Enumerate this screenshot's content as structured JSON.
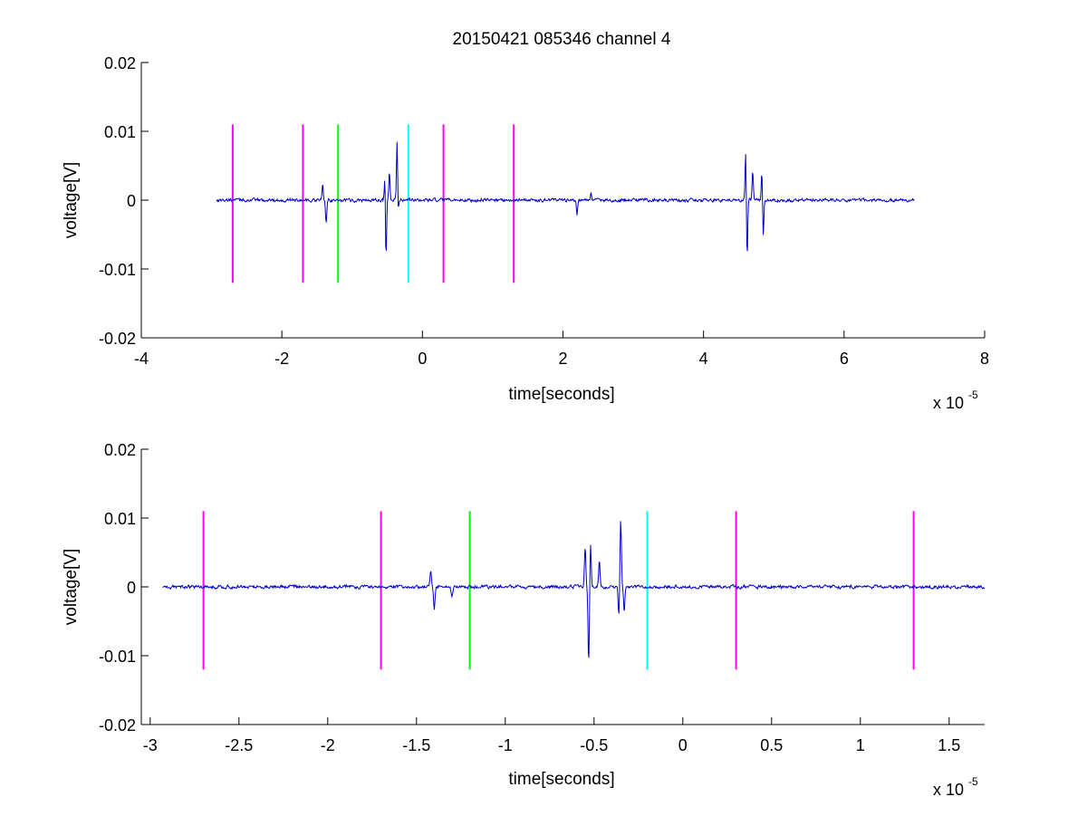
{
  "chart_data": [
    {
      "type": "line",
      "title": "20150421 085346 channel 4",
      "xlabel": "time[seconds]",
      "ylabel": "voltage[V]",
      "xlim": [
        -4,
        8
      ],
      "ylim": [
        -0.02,
        0.02
      ],
      "x_tick_labels": [
        "-4",
        "-2",
        "0",
        "2",
        "4",
        "6",
        "8"
      ],
      "x_tick_values": [
        -4,
        -2,
        0,
        2,
        4,
        6,
        8
      ],
      "y_tick_labels": [
        "-0.02",
        "-0.01",
        "0",
        "0.01",
        "0.02"
      ],
      "y_tick_values": [
        -0.02,
        -0.01,
        0,
        0.01,
        0.02
      ],
      "x_multiplier": {
        "base": "x 10",
        "exponent": "-5"
      },
      "grid": false,
      "series": [
        {
          "color": "#0000cc",
          "x_range": [
            -2.93,
            7.0
          ],
          "noise_amplitude": 0.0004,
          "events": [
            {
              "x": -1.42,
              "y": 0.0022
            },
            {
              "x": -1.37,
              "y": -0.0033
            },
            {
              "x": -0.53,
              "y": 0.0062
            },
            {
              "x": -0.52,
              "y": -0.011
            },
            {
              "x": -0.47,
              "y": 0.004
            },
            {
              "x": -0.36,
              "y": 0.01
            },
            {
              "x": -0.35,
              "y": -0.0034
            },
            {
              "x": 2.4,
              "y": 0.0012
            },
            {
              "x": 2.2,
              "y": -0.002
            },
            {
              "x": 4.6,
              "y": 0.0073
            },
            {
              "x": 4.62,
              "y": -0.0088
            },
            {
              "x": 4.7,
              "y": 0.0045
            },
            {
              "x": 4.83,
              "y": 0.0042
            },
            {
              "x": 4.85,
              "y": -0.0055
            }
          ]
        }
      ],
      "vlines": [
        {
          "x": -2.7,
          "y0": -0.012,
          "y1": 0.011,
          "color": "#ff00ff"
        },
        {
          "x": -1.7,
          "y0": -0.012,
          "y1": 0.011,
          "color": "#ff00ff"
        },
        {
          "x": -1.2,
          "y0": -0.012,
          "y1": 0.011,
          "color": "#00ff00"
        },
        {
          "x": -0.2,
          "y0": -0.012,
          "y1": 0.011,
          "color": "#00ffff"
        },
        {
          "x": 0.3,
          "y0": -0.012,
          "y1": 0.011,
          "color": "#ff00ff"
        },
        {
          "x": 1.3,
          "y0": -0.012,
          "y1": 0.011,
          "color": "#ff00ff"
        }
      ]
    },
    {
      "type": "line",
      "title": "",
      "xlabel": "time[seconds]",
      "ylabel": "voltage[V]",
      "xlim": [
        -3.05,
        1.7
      ],
      "ylim": [
        -0.02,
        0.02
      ],
      "x_tick_labels": [
        "-3",
        "-2.5",
        "-2",
        "-1.5",
        "-1",
        "-0.5",
        "0",
        "0.5",
        "1",
        "1.5"
      ],
      "x_tick_values": [
        -3,
        -2.5,
        -2,
        -1.5,
        -1,
        -0.5,
        0,
        0.5,
        1,
        1.5
      ],
      "y_tick_labels": [
        "-0.02",
        "-0.01",
        "0",
        "0.01",
        "0.02"
      ],
      "y_tick_values": [
        -0.02,
        -0.01,
        0,
        0.01,
        0.02
      ],
      "x_multiplier": {
        "base": "x 10",
        "exponent": "-5"
      },
      "grid": false,
      "series": [
        {
          "color": "#0000cc",
          "x_range": [
            -2.93,
            1.7
          ],
          "noise_amplitude": 0.0004,
          "events": [
            {
              "x": -1.42,
              "y": 0.0025
            },
            {
              "x": -1.4,
              "y": -0.0032
            },
            {
              "x": -1.3,
              "y": -0.0015
            },
            {
              "x": -0.55,
              "y": 0.0057
            },
            {
              "x": -0.53,
              "y": -0.011
            },
            {
              "x": -0.52,
              "y": 0.0062
            },
            {
              "x": -0.47,
              "y": 0.004
            },
            {
              "x": -0.36,
              "y": -0.0045
            },
            {
              "x": -0.35,
              "y": 0.01
            },
            {
              "x": -0.33,
              "y": -0.0035
            }
          ]
        }
      ],
      "vlines": [
        {
          "x": -2.7,
          "y0": -0.012,
          "y1": 0.011,
          "color": "#ff00ff"
        },
        {
          "x": -1.7,
          "y0": -0.012,
          "y1": 0.011,
          "color": "#ff00ff"
        },
        {
          "x": -1.2,
          "y0": -0.012,
          "y1": 0.011,
          "color": "#00ff00"
        },
        {
          "x": -0.2,
          "y0": -0.012,
          "y1": 0.011,
          "color": "#00ffff"
        },
        {
          "x": 0.3,
          "y0": -0.012,
          "y1": 0.011,
          "color": "#ff00ff"
        },
        {
          "x": 1.3,
          "y0": -0.012,
          "y1": 0.011,
          "color": "#ff00ff"
        }
      ]
    }
  ]
}
